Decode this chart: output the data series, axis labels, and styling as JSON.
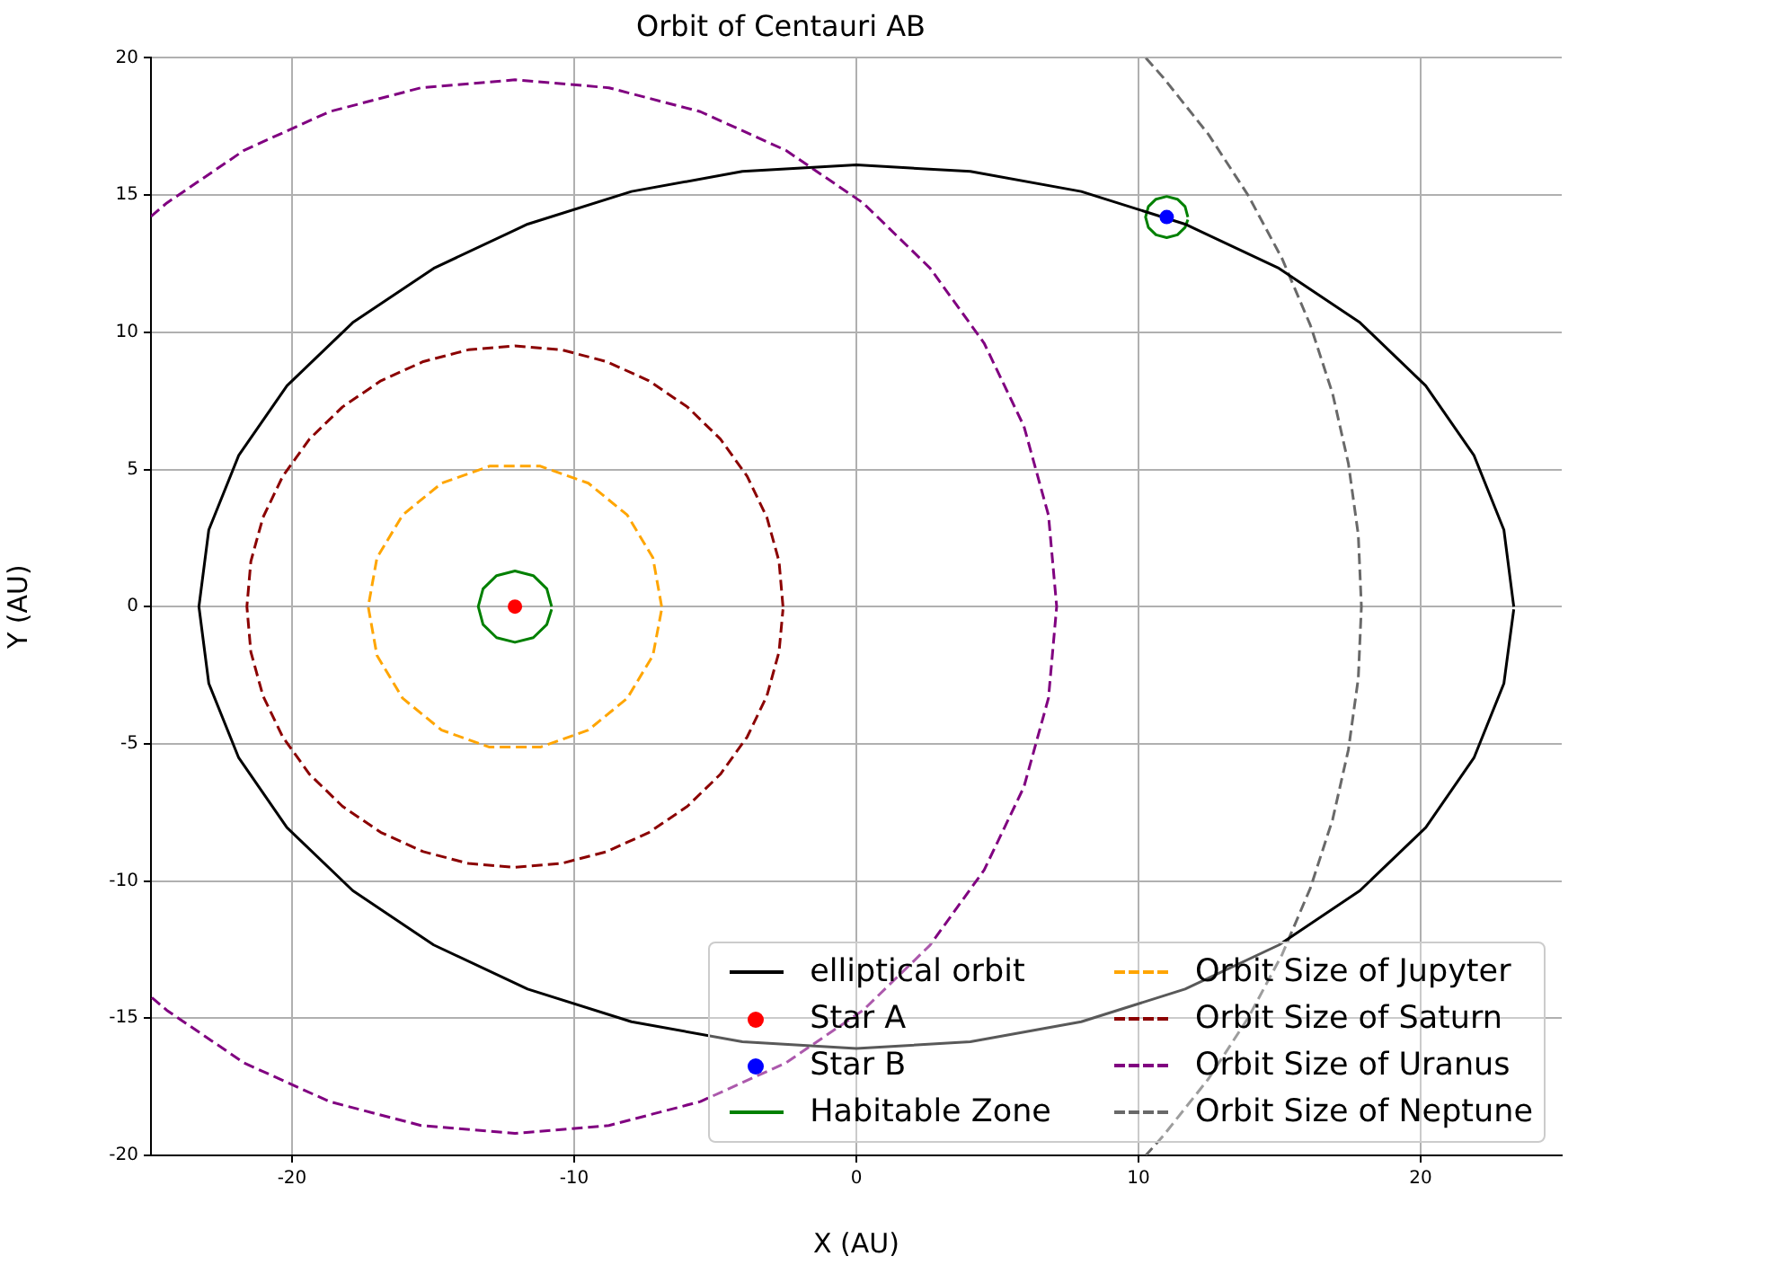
{
  "chart_data": {
    "type": "line",
    "title": "Orbit of Centauri AB",
    "xlabel": "X (AU)",
    "ylabel": "Y (AU)",
    "xlim": [
      -25,
      25
    ],
    "xticks": [
      -20,
      -10,
      0,
      10,
      20
    ],
    "ylim": [
      -20,
      20
    ],
    "yticks": [
      -20,
      -15,
      -10,
      -5,
      0,
      5,
      10,
      15,
      20
    ],
    "grid": true,
    "legend": "bottom right",
    "series": [
      {
        "name": "elliptical orbit",
        "line_style": "solid",
        "color": "#000000",
        "x": [
          23.3,
          22.95,
          21.89,
          20.18,
          17.85,
          14.98,
          11.65,
          7.97,
          4.04,
          0,
          -4.04,
          -7.97,
          -11.65,
          -14.98,
          -17.85,
          -20.18,
          -21.89,
          -22.95,
          -23.3,
          -22.95,
          -21.89,
          -20.18,
          -17.85,
          -14.98,
          -11.65,
          -7.97,
          -4.04,
          0,
          4.04,
          7.97,
          11.65,
          14.98,
          17.85,
          20.18,
          21.89,
          22.95,
          23.3
        ],
        "values": [
          0,
          2.8,
          5.51,
          8.05,
          10.35,
          12.33,
          13.94,
          15.13,
          15.86,
          16.1,
          15.86,
          15.13,
          13.94,
          12.33,
          10.35,
          8.05,
          5.51,
          2.8,
          0,
          -2.8,
          -5.51,
          -8.05,
          -10.35,
          -12.33,
          -13.94,
          -15.13,
          -15.86,
          -16.1,
          -15.86,
          -15.13,
          -13.94,
          -12.33,
          -10.35,
          -8.05,
          -5.51,
          -2.8,
          -0.1
        ]
      },
      {
        "name": "Star A",
        "type": "scatter",
        "marker": "circle",
        "color": "#ff0000",
        "x": [
          -12.1
        ],
        "values": [
          0
        ]
      },
      {
        "name": "Star B",
        "type": "scatter",
        "marker": "circle",
        "color": "#0000ff",
        "x": [
          11
        ],
        "values": [
          14.2
        ]
      },
      {
        "name": "Habitable Zone",
        "line_style": "solid",
        "color": "#008000",
        "x": [
          -10.8,
          -10.97,
          -11.45,
          -12.1,
          -12.75,
          -13.23,
          -13.4,
          -13.23,
          -12.75,
          -12.1,
          -11.45,
          -10.97,
          -10.8,
          null,
          11.75,
          11.65,
          11.38,
          11,
          10.62,
          10.35,
          10.25,
          10.35,
          10.62,
          11,
          11.38,
          11.65,
          11.75
        ],
        "values": [
          0,
          0.65,
          1.13,
          1.3,
          1.13,
          0.65,
          0,
          -0.65,
          -1.13,
          -1.3,
          -1.13,
          -0.65,
          -0.1,
          null,
          14.2,
          14.58,
          14.85,
          14.95,
          14.85,
          14.58,
          14.2,
          13.82,
          13.55,
          13.45,
          13.55,
          13.82,
          14.1
        ]
      },
      {
        "name": "Orbit Size of Jupyter",
        "line_style": "dashed",
        "color": "#ffa500",
        "x": [
          -6.9,
          -7.21,
          -8.12,
          -9.5,
          -11.2,
          -13.0,
          -14.7,
          -16.08,
          -16.99,
          -17.3,
          -16.99,
          -16.08,
          -14.7,
          -13.0,
          -11.2,
          -9.5,
          -8.12,
          -7.21,
          -6.9
        ],
        "values": [
          0,
          1.78,
          3.34,
          4.5,
          5.12,
          5.12,
          4.5,
          3.34,
          1.78,
          0,
          -1.78,
          -3.34,
          -4.5,
          -5.12,
          -5.12,
          -4.5,
          -3.34,
          -1.78,
          -0.1
        ]
      },
      {
        "name": "Orbit Size of Saturn",
        "line_style": "dashed",
        "color": "#8b0000",
        "x": [
          -2.6,
          -2.74,
          -3.17,
          -3.87,
          -4.82,
          -5.99,
          -7.35,
          -8.85,
          -10.45,
          -12.1,
          -13.75,
          -15.35,
          -16.85,
          -18.21,
          -19.38,
          -20.33,
          -21.03,
          -21.46,
          -21.6,
          -21.46,
          -21.03,
          -20.33,
          -19.38,
          -18.21,
          -16.85,
          -15.35,
          -13.75,
          -12.1,
          -10.45,
          -8.85,
          -7.35,
          -5.99,
          -4.82,
          -3.87,
          -3.17,
          -2.74,
          -2.6
        ],
        "values": [
          0,
          1.65,
          3.25,
          4.75,
          6.11,
          7.28,
          8.23,
          8.93,
          9.36,
          9.5,
          9.36,
          8.93,
          8.23,
          7.28,
          6.11,
          4.75,
          3.25,
          1.65,
          0,
          -1.65,
          -3.25,
          -4.75,
          -6.11,
          -7.28,
          -8.23,
          -8.93,
          -9.36,
          -9.5,
          -9.36,
          -8.93,
          -8.23,
          -7.28,
          -6.11,
          -4.75,
          -3.25,
          -1.65,
          -0.1
        ]
      },
      {
        "name": "Orbit Size of Uranus",
        "line_style": "dashed",
        "color": "#800080",
        "x": [
          -25,
          -24.44,
          -21.7,
          -18.67,
          -15.43,
          -12.1,
          -8.77,
          -5.53,
          -2.5,
          0.24,
          2.61,
          4.53,
          5.94,
          6.81,
          7.1,
          6.81,
          5.94,
          4.53,
          2.61,
          0.24,
          -2.5,
          -5.53,
          -8.77,
          -12.1,
          -15.43,
          -18.67,
          -21.7,
          -24.44,
          -25
        ],
        "values": [
          14.22,
          14.71,
          16.63,
          18.04,
          18.91,
          19.2,
          18.91,
          18.04,
          16.63,
          14.71,
          12.34,
          9.6,
          6.57,
          3.33,
          0,
          -3.33,
          -6.57,
          -9.6,
          -12.34,
          -14.71,
          -16.63,
          -18.04,
          -18.91,
          -19.2,
          -18.91,
          -18.04,
          -16.63,
          -14.71,
          -14.22
        ]
      },
      {
        "name": "Orbit Size of Neptune",
        "line_style": "dashed",
        "color": "#696969",
        "x": [
          10.26,
          10.88,
          12.48,
          13.88,
          15.09,
          16.09,
          16.88,
          17.44,
          17.79,
          17.9,
          17.79,
          17.44,
          16.88,
          16.09,
          15.09,
          13.88,
          12.48,
          10.88,
          10.26
        ],
        "values": [
          20,
          19.28,
          17.21,
          15,
          12.68,
          10.26,
          7.76,
          5.21,
          2.61,
          0,
          -2.61,
          -5.21,
          -7.76,
          -10.26,
          -12.68,
          -15,
          -17.21,
          -19.28,
          -20
        ]
      }
    ]
  }
}
